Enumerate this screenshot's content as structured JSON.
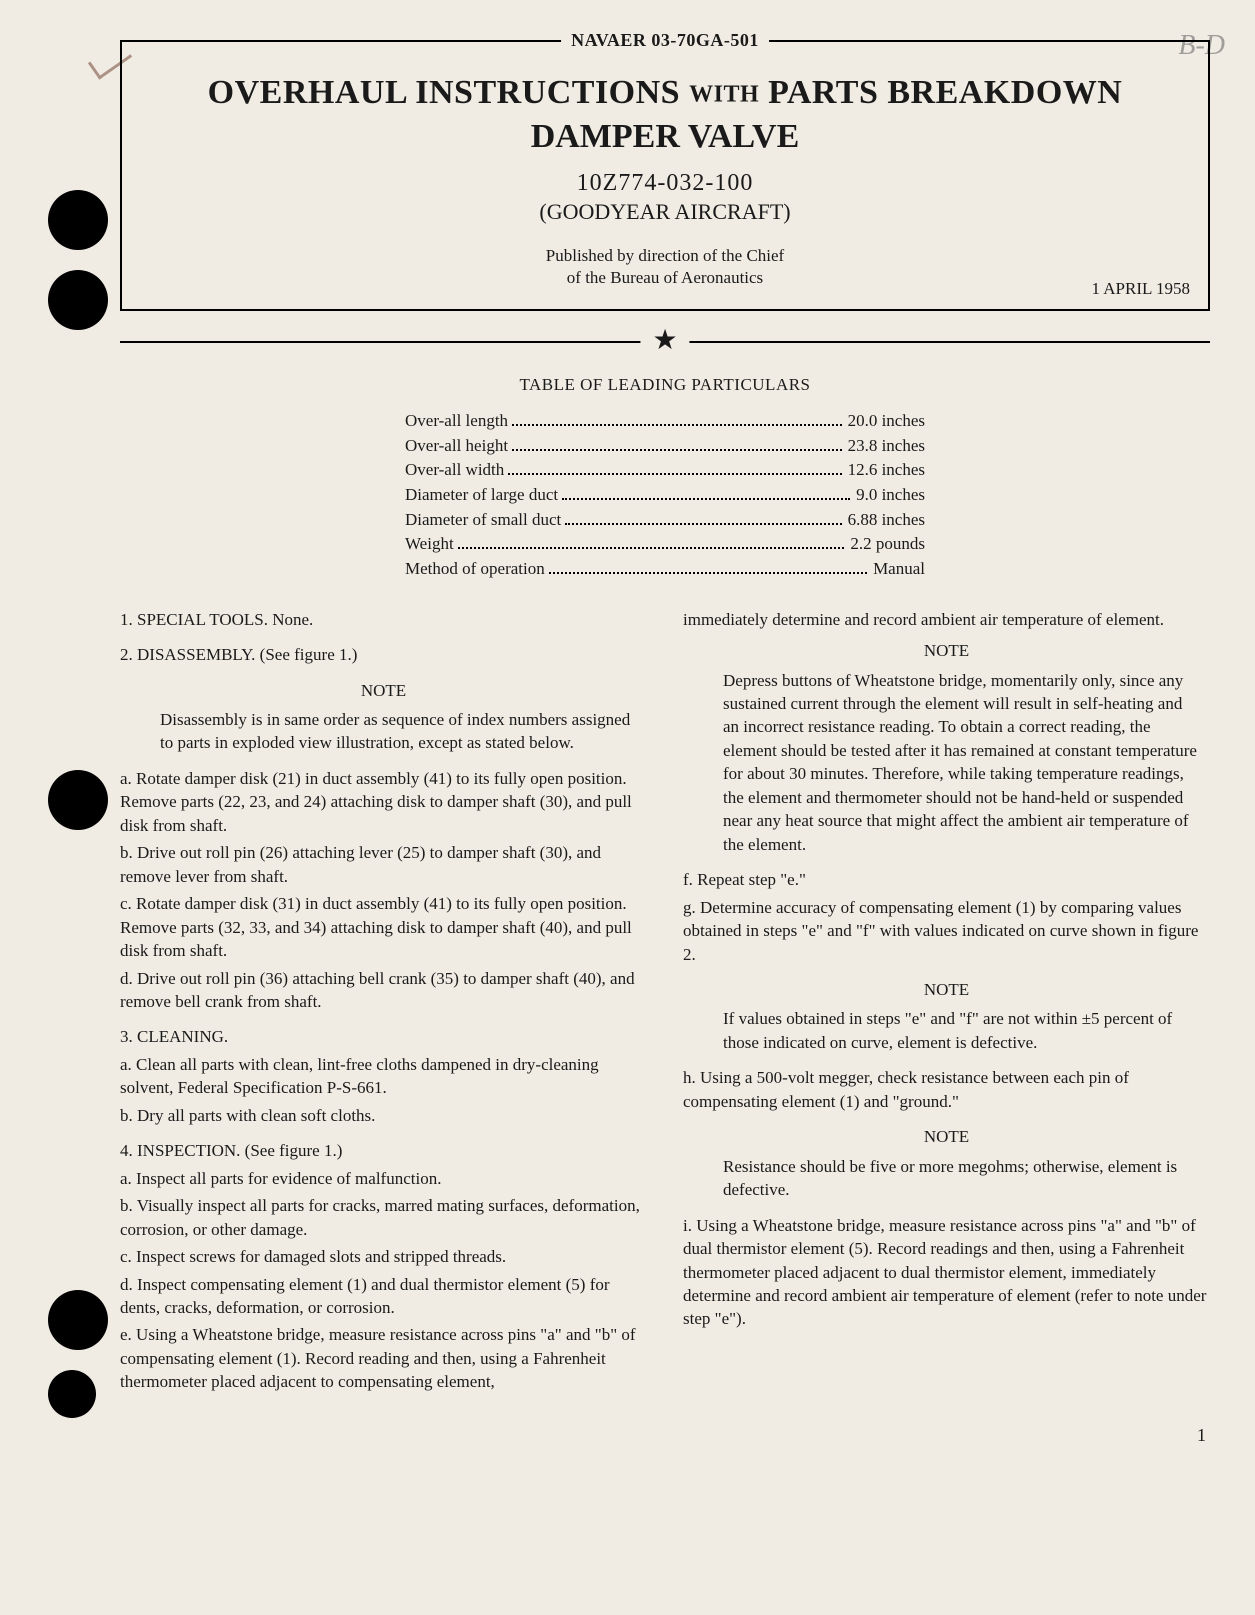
{
  "handwritten_annotation": "B-D",
  "doc_id": "NAVAER 03-70GA-501",
  "title_line1_a": "OVERHAUL INSTRUCTIONS",
  "title_line1_with": "WITH",
  "title_line1_b": "PARTS BREAKDOWN",
  "title_line2": "DAMPER VALVE",
  "part_number": "10Z774-032-100",
  "manufacturer": "(GOODYEAR AIRCRAFT)",
  "published_by_1": "Published by direction of the Chief",
  "published_by_2": "of the Bureau of Aeronautics",
  "date": "1 APRIL 1958",
  "toc_title": "TABLE OF LEADING PARTICULARS",
  "particulars": [
    {
      "label": "Over-all length",
      "value": "20.0 inches"
    },
    {
      "label": "Over-all height",
      "value": "23.8 inches"
    },
    {
      "label": "Over-all width",
      "value": "12.6 inches"
    },
    {
      "label": "Diameter of large duct",
      "value": "9.0 inches"
    },
    {
      "label": "Diameter of small duct",
      "value": "6.88 inches"
    },
    {
      "label": "Weight",
      "value": "2.2 pounds"
    },
    {
      "label": "Method of operation",
      "value": "Manual"
    }
  ],
  "left": {
    "p1": "1. SPECIAL TOOLS. None.",
    "p2": "2. DISASSEMBLY. (See figure 1.)",
    "note_h": "NOTE",
    "note_body": "Disassembly is in same order as sequence of index numbers assigned to parts in exploded view illustration, except as stated below.",
    "a": "a. Rotate damper disk (21) in duct assembly (41) to its fully open position. Remove parts (22, 23, and 24) attaching disk to damper shaft (30), and pull disk from shaft.",
    "b": "b. Drive out roll pin (26) attaching lever (25) to damper shaft (30), and remove lever from shaft.",
    "c": "c. Rotate damper disk (31) in duct assembly (41) to its fully open position. Remove parts (32, 33, and 34) attaching disk to damper shaft (40), and pull disk from shaft.",
    "d": "d. Drive out roll pin (36) attaching bell crank (35) to damper shaft (40), and remove bell crank from shaft.",
    "p3": "3. CLEANING.",
    "c_a": "a. Clean all parts with clean, lint-free cloths dampened in dry-cleaning solvent, Federal Specification P-S-661.",
    "c_b": "b. Dry all parts with clean soft cloths.",
    "p4": "4. INSPECTION. (See figure 1.)",
    "i_a": "a. Inspect all parts for evidence of malfunction.",
    "i_b": "b. Visually inspect all parts for cracks, marred mating surfaces, deformation, corrosion, or other damage.",
    "i_c": "c. Inspect screws for damaged slots and stripped threads.",
    "i_d": "d. Inspect compensating element (1) and dual thermistor element (5) for dents, cracks, deformation, or corrosion.",
    "i_e": "e. Using a Wheatstone bridge, measure resistance across pins \"a\" and \"b\" of compensating element (1). Record reading and then, using a Fahrenheit thermometer placed adjacent to compensating element,"
  },
  "right": {
    "cont": "immediately determine and record ambient air temperature of element.",
    "note_h1": "NOTE",
    "note1": "Depress buttons of Wheatstone bridge, momentarily only, since any sustained current through the element will result in self-heating and an incorrect resistance reading. To obtain a correct reading, the element should be tested after it has remained at constant temperature for about 30 minutes. Therefore, while taking temperature readings, the element and thermometer should not be hand-held or suspended near any heat source that might affect the ambient air temperature of the element.",
    "f": "f. Repeat step \"e.\"",
    "g": "g. Determine accuracy of compensating element (1) by comparing values obtained in steps \"e\" and \"f\" with values indicated on curve shown in figure 2.",
    "note_h2": "NOTE",
    "note2": "If values obtained in steps \"e\" and \"f\" are not within ±5 percent of those indicated on curve, element is defective.",
    "h": "h. Using a 500-volt megger, check resistance between each pin of compensating element (1) and \"ground.\"",
    "note_h3": "NOTE",
    "note3": "Resistance should be five or more megohms; otherwise, element is defective.",
    "i": "i. Using a Wheatstone bridge, measure resistance across pins \"a\" and \"b\" of dual thermistor element (5). Record readings and then, using a Fahrenheit thermometer placed adjacent to dual thermistor element, immediately determine and record ambient air temperature of element (refer to note under step \"e\")."
  },
  "page_number": "1",
  "colors": {
    "paper": "#f0ece3",
    "ink": "#1a1a1a"
  }
}
